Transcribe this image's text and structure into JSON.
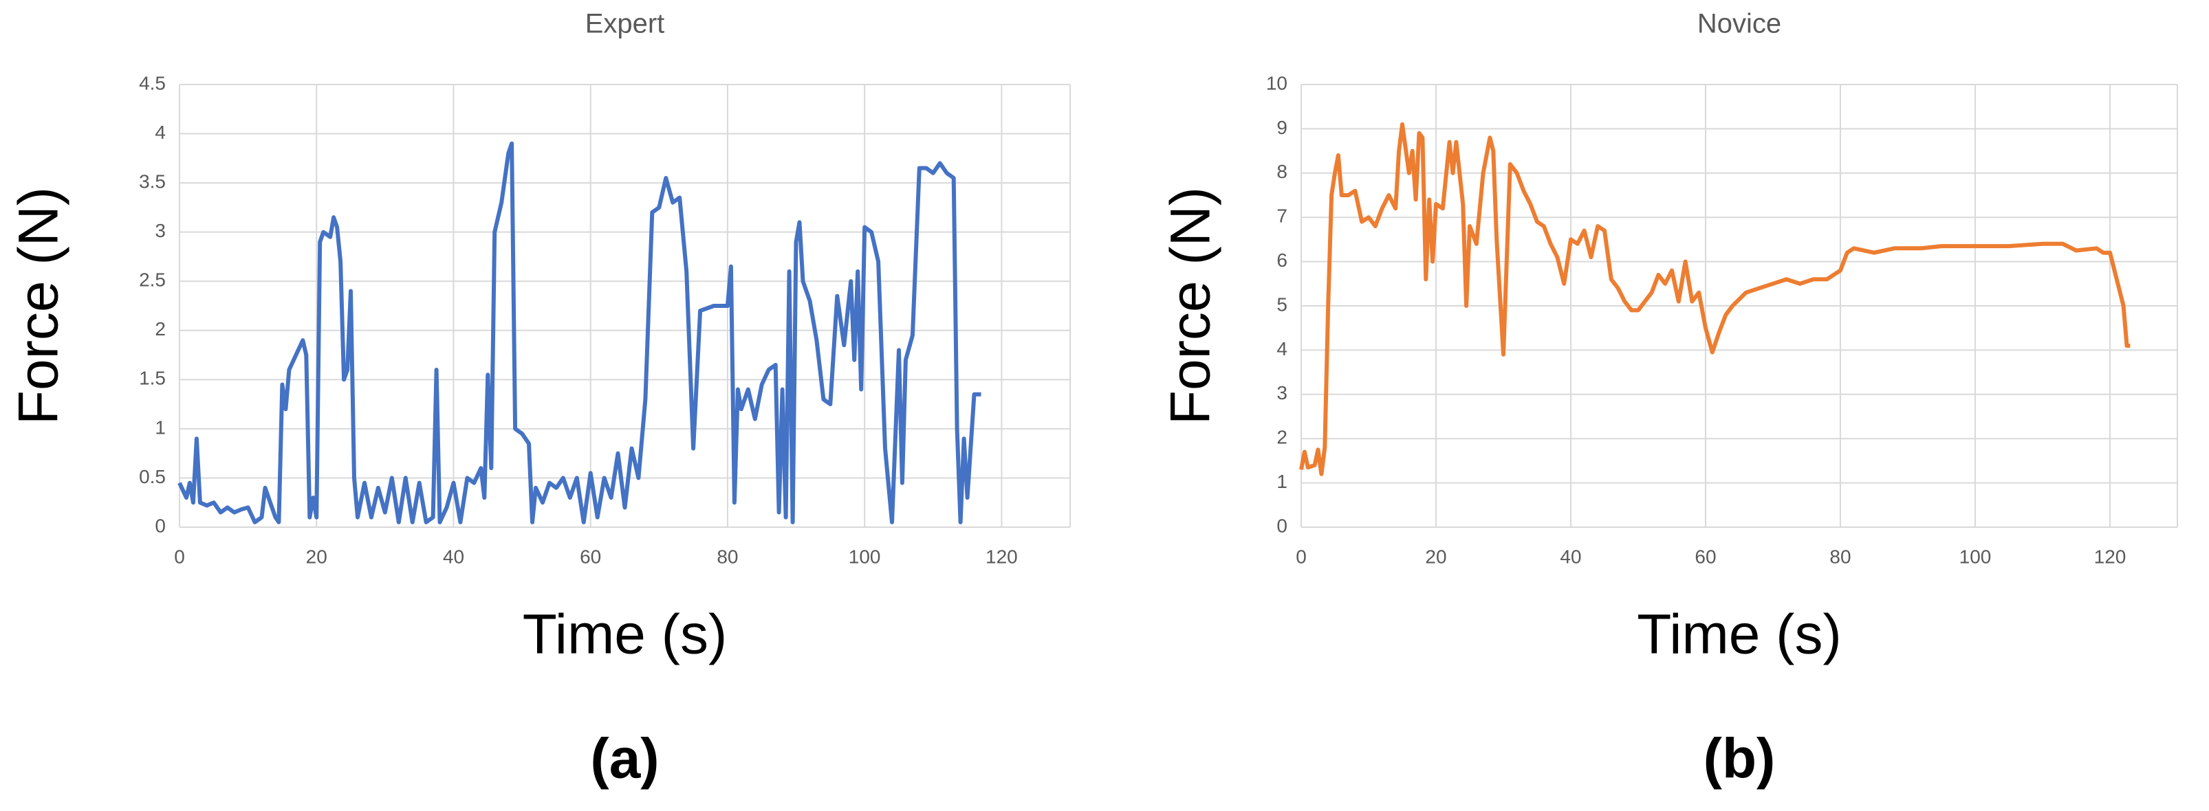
{
  "chart_data": [
    {
      "type": "line",
      "title": "Expert",
      "panel_label": "(a)",
      "xlabel": "Time (s)",
      "ylabel": "Force (N)",
      "color": "#4472c4",
      "grid": true,
      "xlim": [
        0,
        130
      ],
      "xticks": [
        0,
        20,
        40,
        60,
        80,
        100,
        120
      ],
      "ylim": [
        0,
        4.5
      ],
      "yticks": [
        0,
        0.5,
        1,
        1.5,
        2,
        2.5,
        3,
        3.5,
        4,
        4.5
      ],
      "x": [
        0,
        1,
        1.5,
        2,
        2.5,
        3,
        4,
        5,
        6,
        7,
        8,
        9,
        10,
        11,
        12,
        12.5,
        13,
        14,
        14.5,
        15,
        15.5,
        16,
        17,
        18,
        18.5,
        19,
        19.5,
        20,
        20.5,
        21,
        22,
        22.5,
        23,
        23.5,
        24,
        24.5,
        25,
        25.5,
        26,
        27,
        28,
        29,
        30,
        31,
        32,
        33,
        34,
        35,
        36,
        37,
        37.5,
        38,
        39,
        40,
        41,
        42,
        43,
        44,
        44.5,
        45,
        45.5,
        46,
        47,
        48,
        48.5,
        49,
        50,
        51,
        51.5,
        52,
        53,
        54,
        55,
        56,
        57,
        58,
        59,
        60,
        61,
        62,
        63,
        64,
        65,
        66,
        67,
        68,
        69,
        70,
        71,
        72,
        73,
        74,
        75,
        76,
        78,
        80,
        80.5,
        81,
        81.5,
        82,
        83,
        84,
        85,
        86,
        87,
        87.5,
        88,
        88.5,
        89,
        89.5,
        90,
        90.5,
        91,
        92,
        93,
        94,
        95,
        96,
        97,
        98,
        98.5,
        99,
        99.5,
        100,
        101,
        102,
        103,
        104,
        105,
        105.5,
        106,
        107,
        108,
        109,
        110,
        111,
        112,
        113,
        113.5,
        114,
        114.5,
        115,
        116,
        117
      ],
      "values": [
        0.45,
        0.3,
        0.45,
        0.25,
        0.9,
        0.25,
        0.22,
        0.25,
        0.15,
        0.2,
        0.15,
        0.18,
        0.2,
        0.05,
        0.1,
        0.4,
        0.3,
        0.1,
        0.05,
        1.45,
        1.2,
        1.6,
        1.75,
        1.9,
        1.75,
        0.1,
        0.3,
        0.1,
        2.9,
        3.0,
        2.95,
        3.15,
        3.05,
        2.7,
        1.5,
        1.6,
        2.4,
        0.5,
        0.1,
        0.45,
        0.1,
        0.4,
        0.15,
        0.5,
        0.05,
        0.5,
        0.05,
        0.45,
        0.05,
        0.1,
        1.6,
        0.05,
        0.2,
        0.45,
        0.05,
        0.5,
        0.45,
        0.6,
        0.3,
        1.55,
        0.6,
        3.0,
        3.3,
        3.8,
        3.9,
        1.0,
        0.95,
        0.85,
        0.05,
        0.4,
        0.25,
        0.45,
        0.4,
        0.5,
        0.3,
        0.5,
        0.05,
        0.55,
        0.1,
        0.5,
        0.3,
        0.75,
        0.2,
        0.8,
        0.5,
        1.3,
        3.2,
        3.25,
        3.55,
        3.3,
        3.35,
        2.6,
        0.8,
        2.2,
        2.25,
        2.25,
        2.65,
        0.25,
        1.4,
        1.2,
        1.4,
        1.1,
        1.45,
        1.6,
        1.65,
        0.15,
        1.4,
        0.1,
        2.6,
        0.05,
        2.9,
        3.1,
        2.5,
        2.3,
        1.9,
        1.3,
        1.25,
        2.35,
        1.85,
        2.5,
        1.7,
        2.6,
        1.4,
        3.05,
        3.0,
        2.7,
        0.8,
        0.05,
        1.8,
        0.45,
        1.7,
        1.95,
        3.65,
        3.65,
        3.6,
        3.7,
        3.6,
        3.55,
        1.0,
        0.05,
        0.9,
        0.3,
        1.35,
        1.35
      ]
    },
    {
      "type": "line",
      "title": "Novice",
      "panel_label": "(b)",
      "xlabel": "Time (s)",
      "ylabel": "Force (N)",
      "color": "#ed7d31",
      "grid": true,
      "xlim": [
        0,
        130
      ],
      "xticks": [
        0,
        20,
        40,
        60,
        80,
        100,
        120
      ],
      "ylim": [
        0,
        10
      ],
      "yticks": [
        0,
        1,
        2,
        3,
        4,
        5,
        6,
        7,
        8,
        9,
        10
      ],
      "x": [
        0,
        0.5,
        1,
        2,
        2.5,
        3,
        3.5,
        4,
        4.5,
        5,
        5.5,
        6,
        7,
        8,
        9,
        10,
        11,
        12,
        13,
        14,
        14.5,
        15,
        16,
        16.5,
        17,
        17.5,
        18,
        18.5,
        19,
        19.5,
        20,
        21,
        22,
        22.5,
        23,
        24,
        24.5,
        25,
        26,
        27,
        28,
        28.5,
        29,
        30,
        31,
        32,
        33,
        34,
        35,
        36,
        37,
        38,
        39,
        40,
        41,
        42,
        43,
        44,
        45,
        46,
        47,
        48,
        49,
        50,
        52,
        53,
        54,
        55,
        56,
        57,
        58,
        59,
        60,
        61,
        62,
        63,
        64,
        66,
        68,
        70,
        72,
        74,
        76,
        78,
        80,
        81,
        82,
        85,
        88,
        90,
        92,
        95,
        100,
        105,
        110,
        113,
        115,
        118,
        119,
        120,
        121,
        122,
        122.5,
        123
      ],
      "values": [
        1.3,
        1.7,
        1.35,
        1.4,
        1.75,
        1.2,
        1.8,
        5.0,
        7.5,
        8.0,
        8.4,
        7.5,
        7.5,
        7.6,
        6.9,
        7.0,
        6.8,
        7.2,
        7.5,
        7.2,
        8.5,
        9.1,
        8.0,
        8.5,
        7.4,
        8.9,
        8.8,
        5.6,
        7.4,
        6.0,
        7.3,
        7.2,
        8.7,
        8.0,
        8.7,
        7.3,
        5.0,
        6.8,
        6.4,
        8.0,
        8.8,
        8.5,
        6.5,
        3.9,
        8.2,
        8.0,
        7.6,
        7.3,
        6.9,
        6.8,
        6.4,
        6.1,
        5.5,
        6.5,
        6.4,
        6.7,
        6.1,
        6.8,
        6.7,
        5.6,
        5.4,
        5.1,
        4.9,
        4.9,
        5.3,
        5.7,
        5.5,
        5.8,
        5.1,
        6.0,
        5.1,
        5.3,
        4.5,
        3.95,
        4.4,
        4.8,
        5.0,
        5.3,
        5.4,
        5.5,
        5.6,
        5.5,
        5.6,
        5.6,
        5.8,
        6.2,
        6.3,
        6.2,
        6.3,
        6.3,
        6.3,
        6.35,
        6.35,
        6.35,
        6.4,
        6.4,
        6.25,
        6.3,
        6.2,
        6.2,
        5.6,
        5.0,
        4.1,
        4.1
      ]
    }
  ]
}
